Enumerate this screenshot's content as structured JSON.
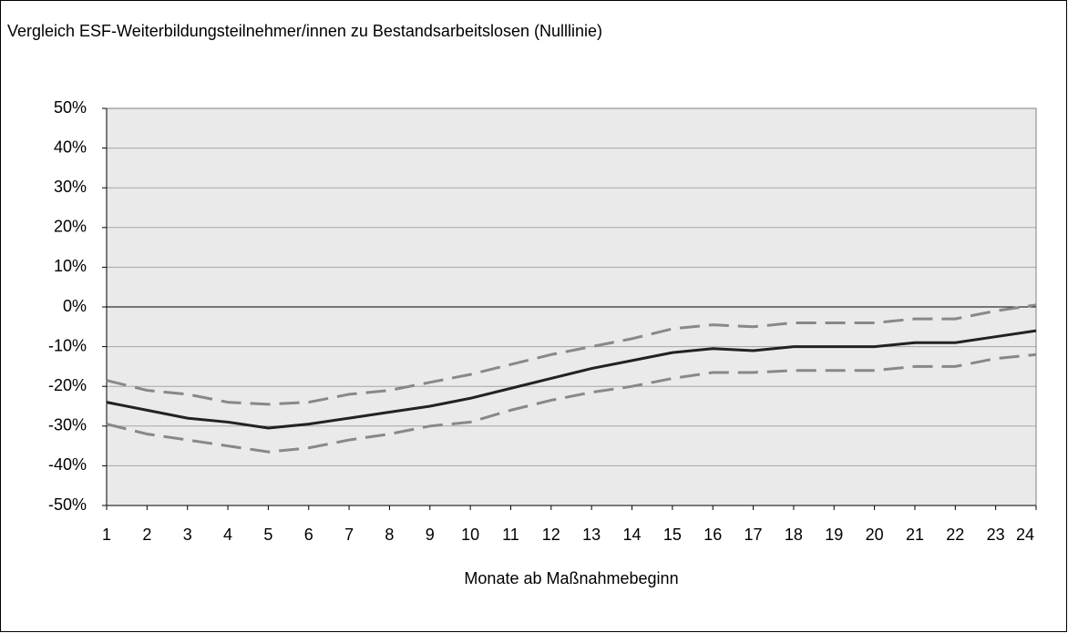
{
  "chart_data": {
    "type": "line",
    "title": "Vergleich ESF-Weiterbildungsteilnehmer/innen zu Bestandsarbeitslosen (Nulllinie)",
    "x_label": "Monate ab Maßnahmebeginn",
    "x": [
      1,
      2,
      3,
      4,
      5,
      6,
      7,
      8,
      9,
      10,
      11,
      12,
      13,
      14,
      15,
      16,
      17,
      18,
      19,
      20,
      21,
      22,
      23,
      24
    ],
    "xlim": [
      1,
      24
    ],
    "xticks": [
      1,
      2,
      3,
      4,
      5,
      6,
      7,
      8,
      9,
      10,
      11,
      12,
      13,
      14,
      15,
      16,
      17,
      18,
      19,
      20,
      21,
      22,
      23,
      24
    ],
    "ylim": [
      -50,
      50
    ],
    "yticks": [
      {
        "value": -50,
        "label": "-50%"
      },
      {
        "value": -40,
        "label": "-40%"
      },
      {
        "value": -30,
        "label": "-30%"
      },
      {
        "value": -20,
        "label": "-20%"
      },
      {
        "value": -10,
        "label": "-10%"
      },
      {
        "value": 0,
        "label": "0%"
      },
      {
        "value": 10,
        "label": "10%"
      },
      {
        "value": 20,
        "label": "20%"
      },
      {
        "value": 30,
        "label": "30%"
      },
      {
        "value": 40,
        "label": "40%"
      },
      {
        "value": 50,
        "label": "50%"
      }
    ],
    "grid": true,
    "zero_line": true,
    "plot_background": "#eaeaea",
    "series": [
      {
        "color": "#888888",
        "style": "dashed",
        "values": [
          -18.5,
          -21,
          -22,
          -24,
          -24.5,
          -24,
          -22,
          -21,
          -19,
          -17,
          -14.5,
          -12,
          -10,
          -8,
          -5.5,
          -4.5,
          -5,
          -4,
          -4,
          -4,
          -3,
          -3,
          -1,
          0.5
        ]
      },
      {
        "color": "#888888",
        "style": "dashed",
        "values": [
          -29.5,
          -32,
          -33.5,
          -35,
          -36.5,
          -35.5,
          -33.5,
          -32,
          -30,
          -29,
          -26,
          -23.5,
          -21.5,
          -20,
          -18,
          -16.5,
          -16.5,
          -16,
          -16,
          -16,
          -15,
          -15,
          -13,
          -12
        ]
      },
      {
        "color": "#222222",
        "style": "solid",
        "values": [
          -24,
          -26,
          -28,
          -29,
          -30.5,
          -29.5,
          -28,
          -26.5,
          -25,
          -23,
          -20.5,
          -18,
          -15.5,
          -13.5,
          -11.5,
          -10.5,
          -11,
          -10,
          -10,
          -10,
          -9,
          -9,
          -7.5,
          -6
        ]
      }
    ]
  }
}
